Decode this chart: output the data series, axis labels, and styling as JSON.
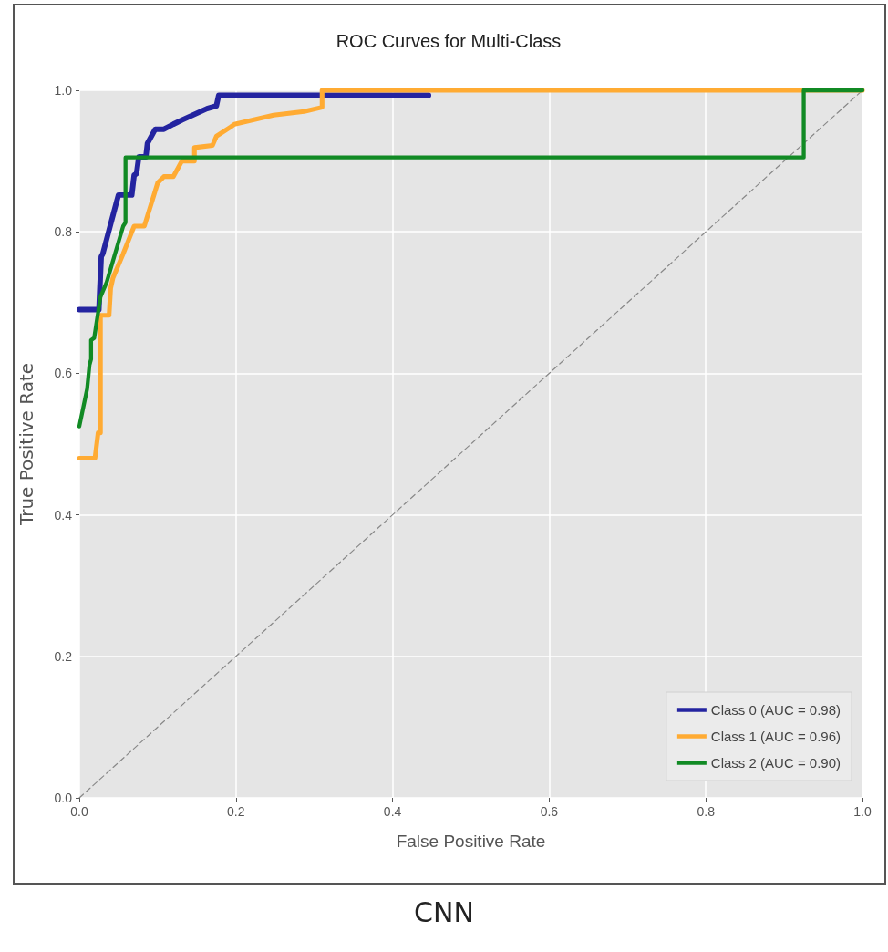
{
  "chart_data": {
    "type": "line",
    "title": "ROC Curves for Multi-Class",
    "xlabel": "False Positive Rate",
    "ylabel": "True Positive Rate",
    "xlim": [
      0,
      1
    ],
    "ylim": [
      0,
      1
    ],
    "xticks": [
      {
        "value": 0,
        "label": "0.0"
      },
      {
        "value": 0.2,
        "label": "0.2"
      },
      {
        "value": 0.4,
        "label": "0.4"
      },
      {
        "value": 0.6,
        "label": "0.6"
      },
      {
        "value": 0.8,
        "label": "0.8"
      },
      {
        "value": 1,
        "label": "1.0"
      }
    ],
    "yticks": [
      {
        "value": 0,
        "label": "0.0"
      },
      {
        "value": 0.2,
        "label": "0.2"
      },
      {
        "value": 0.4,
        "label": "0.4"
      },
      {
        "value": 0.6,
        "label": "0.6"
      },
      {
        "value": 0.8,
        "label": "0.8"
      },
      {
        "value": 1,
        "label": "1.0"
      }
    ],
    "grid": true,
    "legend": "bottom right",
    "marker": "none",
    "line_style": "solid",
    "annotations": [
      "CNN"
    ],
    "series": [
      {
        "name": "Class 0 (AUC = 0.98)",
        "color": "#2424a0",
        "x": [
          0,
          0.025,
          0.028,
          0.03,
          0.047,
          0.05,
          0.067,
          0.07,
          0.073,
          0.076,
          0.085,
          0.087,
          0.097,
          0.108,
          0.12,
          0.131,
          0.163,
          0.175,
          0.178,
          0.446
        ],
        "values": [
          0.69,
          0.69,
          0.765,
          0.769,
          0.84,
          0.852,
          0.852,
          0.88,
          0.882,
          0.906,
          0.906,
          0.925,
          0.945,
          0.945,
          0.952,
          0.958,
          0.974,
          0.978,
          0.993,
          0.993
        ]
      },
      {
        "name": "Class 1 (AUC = 0.96)",
        "color": "#ffab33",
        "x": [
          0,
          0.02,
          0.024,
          0.027,
          0.027,
          0.038,
          0.04,
          0.043,
          0.056,
          0.07,
          0.083,
          0.1,
          0.108,
          0.12,
          0.131,
          0.147,
          0.147,
          0.17,
          0.175,
          0.193,
          0.198,
          0.248,
          0.287,
          0.31,
          0.31,
          1
        ],
        "values": [
          0.48,
          0.48,
          0.516,
          0.516,
          0.682,
          0.682,
          0.72,
          0.735,
          0.769,
          0.808,
          0.808,
          0.869,
          0.878,
          0.878,
          0.9,
          0.9,
          0.919,
          0.922,
          0.935,
          0.948,
          0.952,
          0.965,
          0.97,
          0.976,
          1,
          1
        ]
      },
      {
        "name": "Class 2 (AUC = 0.90)",
        "color": "#118a24",
        "x": [
          0,
          0.01,
          0.013,
          0.015,
          0.015,
          0.019,
          0.027,
          0.035,
          0.056,
          0.059,
          0.059,
          0.925,
          0.925,
          1
        ],
        "values": [
          0.525,
          0.578,
          0.612,
          0.62,
          0.647,
          0.65,
          0.708,
          0.729,
          0.808,
          0.813,
          0.905,
          0.905,
          1,
          1
        ]
      },
      {
        "color": "#888888",
        "line_style": "dashed",
        "x": [
          0,
          1
        ],
        "values": [
          0,
          1
        ]
      }
    ]
  }
}
